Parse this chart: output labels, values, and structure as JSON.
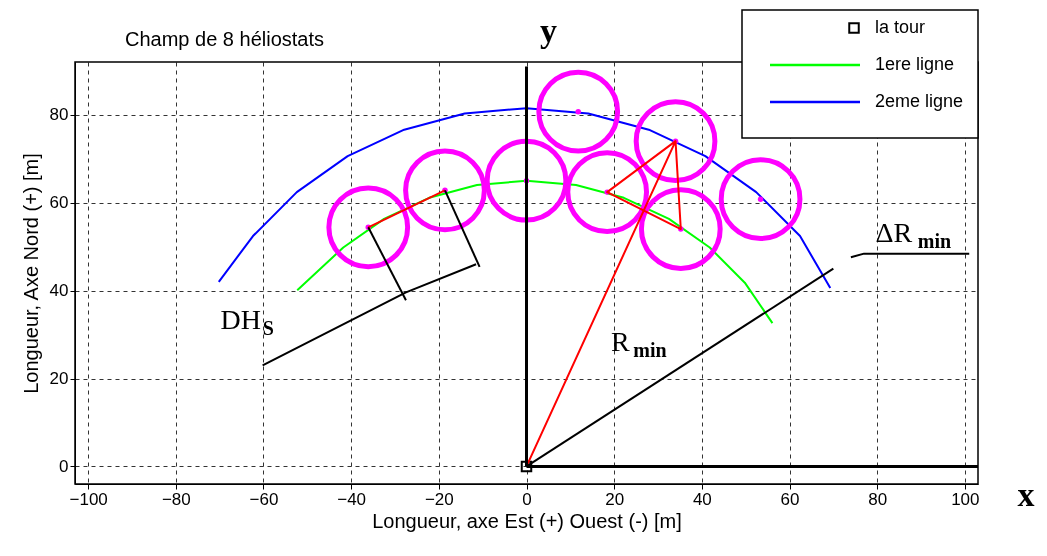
{
  "chart_data": {
    "type": "line",
    "title": "Champ de 8 héliostats",
    "xlabel": "Longueur, axe Est (+) Ouest (-)  [m]",
    "ylabel": "Longueur, Axe Nord (+)  [m]",
    "xlim": [
      -103,
      103
    ],
    "ylim": [
      -4,
      92
    ],
    "xticks": [
      -100,
      -80,
      -60,
      -40,
      -20,
      0,
      20,
      40,
      60,
      80,
      100
    ],
    "yticks": [
      0,
      20,
      40,
      60,
      80
    ],
    "grid": true,
    "legend": "top right",
    "series": [
      {
        "name": "la tour",
        "type": "scatter",
        "marker": "square",
        "color": "#000000",
        "x": [
          0
        ],
        "values": [
          0
        ]
      },
      {
        "name": "1ere ligne",
        "color": "#00ff00",
        "x": [
          -52.3,
          -41.8,
          -32.5,
          -22.2,
          -11.3,
          0,
          11.3,
          22.2,
          32.5,
          41.8,
          49.8,
          56.1
        ],
        "values": [
          40.1,
          49.8,
          56.3,
          61.1,
          64.0,
          65,
          64.0,
          61.1,
          56.3,
          49.8,
          41.8,
          32.6
        ]
      },
      {
        "name": "2eme ligne",
        "color": "#0000ff",
        "x": [
          -70.2,
          -62.4,
          -52.4,
          -40.8,
          -27.9,
          -14.1,
          0,
          14.1,
          27.9,
          40.8,
          52.4,
          62.4,
          69.3
        ],
        "values": [
          42,
          52.4,
          62.4,
          70.6,
          76.6,
          80.3,
          81.5,
          80.3,
          76.6,
          70.6,
          62.4,
          52.4,
          40.6
        ]
      },
      {
        "type": "bubble",
        "color": "#ff00ff",
        "x": [
          -36.1,
          -18.6,
          0,
          11.8,
          18.4,
          34,
          35.2,
          53.4
        ],
        "values": [
          54.4,
          62.8,
          65,
          80.7,
          62.4,
          74,
          54,
          60.8
        ],
        "sizes": [
          1,
          1,
          1,
          1,
          1,
          1,
          1,
          1
        ]
      },
      {
        "type": "line",
        "color": "#ff0000",
        "x": [
          -36.1,
          -18.6
        ],
        "values": [
          54.4,
          62.8
        ]
      },
      {
        "type": "line",
        "color": "#ff0000",
        "x": [
          0,
          34,
          35.2,
          18.4,
          34
        ],
        "values": [
          0,
          74,
          54,
          62.4,
          74
        ]
      },
      {
        "type": "line",
        "color": "#000000",
        "x": [
          -36.1,
          -27.5
        ],
        "values": [
          54.4,
          37.8
        ]
      },
      {
        "type": "line",
        "color": "#000000",
        "x": [
          -18.6,
          -10.7
        ],
        "values": [
          62.8,
          45.4
        ]
      },
      {
        "type": "line",
        "color": "#000000",
        "x": [
          -60.2,
          -27.5,
          -11.5
        ],
        "values": [
          23,
          39.6,
          46
        ]
      },
      {
        "type": "line",
        "color": "#000000",
        "x": [
          0,
          70
        ],
        "values": [
          0,
          45
        ]
      },
      {
        "type": "line",
        "color": "#000000",
        "x": [
          74,
          77,
          101
        ],
        "values": [
          47.6,
          48.4,
          48.4
        ]
      },
      {
        "type": "line",
        "color": "#000000",
        "x": [
          0,
          0
        ],
        "values": [
          0,
          91
        ]
      },
      {
        "type": "line",
        "color": "#000000",
        "x": [
          0,
          103
        ],
        "values": [
          0,
          0
        ]
      }
    ],
    "annotations": [
      "DH$_{S}$",
      "R$_{min}$",
      "ΔR$_{min}$",
      "y",
      "x"
    ]
  }
}
